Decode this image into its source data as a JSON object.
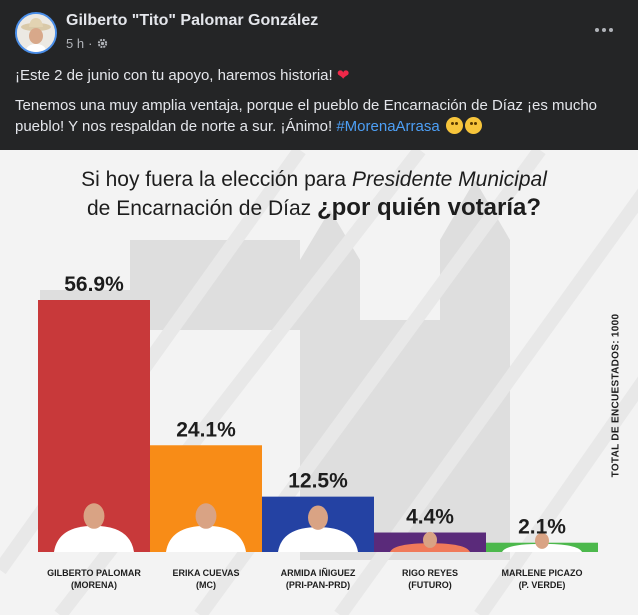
{
  "post": {
    "author": "Gilberto \"Tito\" Palomar González",
    "time": "5 h",
    "separator": "·",
    "text_line1": "¡Este 2 de junio con tu apoyo, haremos historia!",
    "text_line2": "Tenemos una muy amplia ventaja, porque el pueblo de Encarnación de Díaz ¡es mucho pueblo! Y nos respaldan de norte a sur. ¡Ánimo!",
    "hashtag": "#MorenaArrasa",
    "heart": "❤"
  },
  "icons": {
    "avatar": "avatar-cowboy-hat",
    "privacy": "gear-icon",
    "more": "more-options-icon"
  },
  "chart_data": {
    "type": "bar",
    "title_part1": "Si hoy fuera la elección para ",
    "title_italic": "Presidente Municipal",
    "title_part2": "de Encarnación de Díaz ",
    "title_bold": "¿por quién votaría?",
    "side_note": "TOTAL DE ENCUESTADOS: 1000",
    "ylim": [
      0,
      60
    ],
    "categories": [
      {
        "name": "GILBERTO PALOMAR",
        "party": "(MORENA)",
        "value": 56.9,
        "label": "56.9%",
        "color": "#c8393a"
      },
      {
        "name": "ERIKA CUEVAS",
        "party": "(MC)",
        "value": 24.1,
        "label": "24.1%",
        "color": "#f88c17"
      },
      {
        "name": "ARMIDA IÑIGUEZ",
        "party": "(PRI-PAN-PRD)",
        "value": 12.5,
        "label": "12.5%",
        "color": "#2442a3"
      },
      {
        "name": "RIGO REYES",
        "party": "(FUTURO)",
        "value": 4.4,
        "label": "4.4%",
        "color": "#5a2a7a"
      },
      {
        "name": "MARLENE PICAZO",
        "party": "(P. VERDE)",
        "value": 2.1,
        "label": "2.1%",
        "color": "#4cb84c"
      }
    ]
  }
}
